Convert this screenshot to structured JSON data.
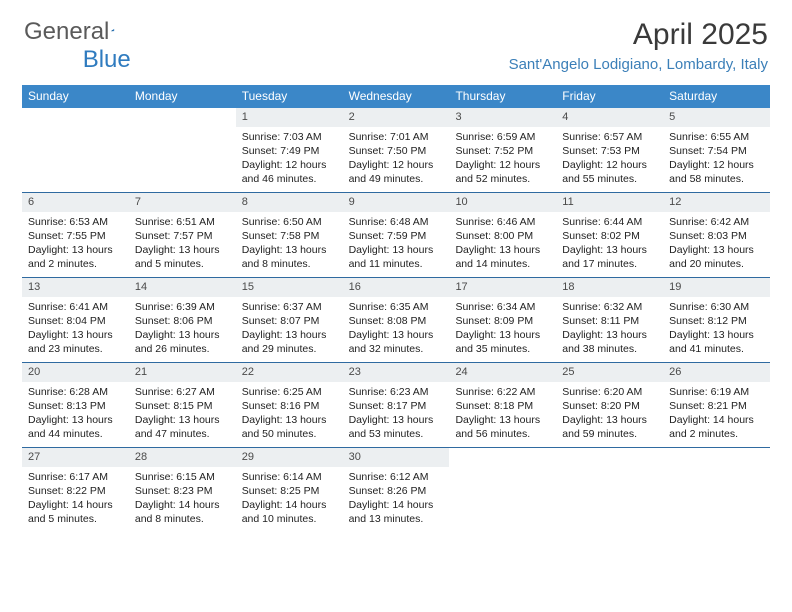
{
  "logo": {
    "text1": "General",
    "text2": "Blue"
  },
  "title": "April 2025",
  "subtitle": "Sant'Angelo Lodigiano, Lombardy, Italy",
  "colors": {
    "header_bar": "#3b87c8",
    "week_divider": "#2f6aa0",
    "daynum_bg": "#eceff1",
    "logo_gray": "#5a5a5a",
    "logo_blue": "#2f7bbf"
  },
  "day_headers": [
    "Sunday",
    "Monday",
    "Tuesday",
    "Wednesday",
    "Thursday",
    "Friday",
    "Saturday"
  ],
  "weeks": [
    [
      null,
      null,
      {
        "n": "1",
        "sr": "7:03 AM",
        "ss": "7:49 PM",
        "dl": "12 hours and 46 minutes."
      },
      {
        "n": "2",
        "sr": "7:01 AM",
        "ss": "7:50 PM",
        "dl": "12 hours and 49 minutes."
      },
      {
        "n": "3",
        "sr": "6:59 AM",
        "ss": "7:52 PM",
        "dl": "12 hours and 52 minutes."
      },
      {
        "n": "4",
        "sr": "6:57 AM",
        "ss": "7:53 PM",
        "dl": "12 hours and 55 minutes."
      },
      {
        "n": "5",
        "sr": "6:55 AM",
        "ss": "7:54 PM",
        "dl": "12 hours and 58 minutes."
      }
    ],
    [
      {
        "n": "6",
        "sr": "6:53 AM",
        "ss": "7:55 PM",
        "dl": "13 hours and 2 minutes."
      },
      {
        "n": "7",
        "sr": "6:51 AM",
        "ss": "7:57 PM",
        "dl": "13 hours and 5 minutes."
      },
      {
        "n": "8",
        "sr": "6:50 AM",
        "ss": "7:58 PM",
        "dl": "13 hours and 8 minutes."
      },
      {
        "n": "9",
        "sr": "6:48 AM",
        "ss": "7:59 PM",
        "dl": "13 hours and 11 minutes."
      },
      {
        "n": "10",
        "sr": "6:46 AM",
        "ss": "8:00 PM",
        "dl": "13 hours and 14 minutes."
      },
      {
        "n": "11",
        "sr": "6:44 AM",
        "ss": "8:02 PM",
        "dl": "13 hours and 17 minutes."
      },
      {
        "n": "12",
        "sr": "6:42 AM",
        "ss": "8:03 PM",
        "dl": "13 hours and 20 minutes."
      }
    ],
    [
      {
        "n": "13",
        "sr": "6:41 AM",
        "ss": "8:04 PM",
        "dl": "13 hours and 23 minutes."
      },
      {
        "n": "14",
        "sr": "6:39 AM",
        "ss": "8:06 PM",
        "dl": "13 hours and 26 minutes."
      },
      {
        "n": "15",
        "sr": "6:37 AM",
        "ss": "8:07 PM",
        "dl": "13 hours and 29 minutes."
      },
      {
        "n": "16",
        "sr": "6:35 AM",
        "ss": "8:08 PM",
        "dl": "13 hours and 32 minutes."
      },
      {
        "n": "17",
        "sr": "6:34 AM",
        "ss": "8:09 PM",
        "dl": "13 hours and 35 minutes."
      },
      {
        "n": "18",
        "sr": "6:32 AM",
        "ss": "8:11 PM",
        "dl": "13 hours and 38 minutes."
      },
      {
        "n": "19",
        "sr": "6:30 AM",
        "ss": "8:12 PM",
        "dl": "13 hours and 41 minutes."
      }
    ],
    [
      {
        "n": "20",
        "sr": "6:28 AM",
        "ss": "8:13 PM",
        "dl": "13 hours and 44 minutes."
      },
      {
        "n": "21",
        "sr": "6:27 AM",
        "ss": "8:15 PM",
        "dl": "13 hours and 47 minutes."
      },
      {
        "n": "22",
        "sr": "6:25 AM",
        "ss": "8:16 PM",
        "dl": "13 hours and 50 minutes."
      },
      {
        "n": "23",
        "sr": "6:23 AM",
        "ss": "8:17 PM",
        "dl": "13 hours and 53 minutes."
      },
      {
        "n": "24",
        "sr": "6:22 AM",
        "ss": "8:18 PM",
        "dl": "13 hours and 56 minutes."
      },
      {
        "n": "25",
        "sr": "6:20 AM",
        "ss": "8:20 PM",
        "dl": "13 hours and 59 minutes."
      },
      {
        "n": "26",
        "sr": "6:19 AM",
        "ss": "8:21 PM",
        "dl": "14 hours and 2 minutes."
      }
    ],
    [
      {
        "n": "27",
        "sr": "6:17 AM",
        "ss": "8:22 PM",
        "dl": "14 hours and 5 minutes."
      },
      {
        "n": "28",
        "sr": "6:15 AM",
        "ss": "8:23 PM",
        "dl": "14 hours and 8 minutes."
      },
      {
        "n": "29",
        "sr": "6:14 AM",
        "ss": "8:25 PM",
        "dl": "14 hours and 10 minutes."
      },
      {
        "n": "30",
        "sr": "6:12 AM",
        "ss": "8:26 PM",
        "dl": "14 hours and 13 minutes."
      },
      null,
      null,
      null
    ]
  ],
  "labels": {
    "sunrise": "Sunrise:",
    "sunset": "Sunset:",
    "daylight": "Daylight:"
  }
}
